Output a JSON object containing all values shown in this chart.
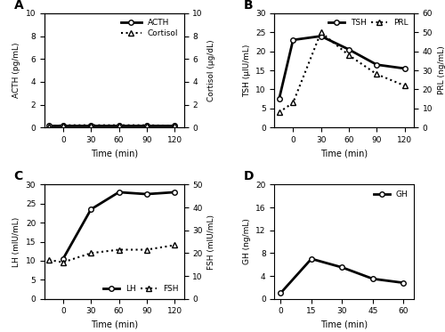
{
  "A": {
    "label": "A",
    "acth_x": [
      -15,
      0,
      30,
      60,
      90,
      120
    ],
    "acth": [
      0.15,
      0.15,
      0.15,
      0.15,
      0.15,
      0.15
    ],
    "cortisol_x": [
      -15,
      0,
      30,
      60,
      90,
      120
    ],
    "cortisol": [
      0.1,
      0.2,
      0.2,
      0.2,
      0.2,
      0.15
    ],
    "ylabel_left": "ACTH (pg/mL)",
    "ylabel_right": "Cortisol (μg/dL)",
    "ylim_left": [
      0,
      10
    ],
    "ylim_right": [
      0,
      10
    ],
    "yticks_left": [
      0,
      2,
      4,
      6,
      8,
      10
    ],
    "yticks_right": [
      0,
      2,
      4,
      6,
      8,
      10
    ],
    "xlabel": "Time (min)",
    "xticks": [
      0,
      30,
      60,
      90,
      120
    ],
    "xlim": [
      -20,
      130
    ],
    "legend1": "ACTH",
    "legend2": "Cortisol"
  },
  "B": {
    "label": "B",
    "tsh_x": [
      -15,
      0,
      30,
      60,
      90,
      120
    ],
    "tsh": [
      7.5,
      23.0,
      24.0,
      20.5,
      16.5,
      15.5
    ],
    "prl_x": [
      -15,
      0,
      30,
      60,
      90,
      120
    ],
    "prl": [
      8.0,
      13.0,
      50.0,
      38.0,
      28.0,
      22.0
    ],
    "ylabel_left": "TSH (μIU/mL)",
    "ylabel_right": "PRL (ng/mL)",
    "ylim_left": [
      0,
      30
    ],
    "ylim_right": [
      0,
      60
    ],
    "yticks_left": [
      0,
      5,
      10,
      15,
      20,
      25,
      30
    ],
    "yticks_right": [
      0,
      10,
      20,
      30,
      40,
      50,
      60
    ],
    "xlabel": "Time (min)",
    "xticks": [
      0,
      30,
      60,
      90,
      120
    ],
    "xlim": [
      -20,
      130
    ],
    "legend1": "TSH",
    "legend2": "PRL"
  },
  "C": {
    "label": "C",
    "lh_x": [
      0,
      30,
      60,
      90,
      120
    ],
    "lh": [
      10.5,
      23.5,
      28.0,
      27.5,
      28.0
    ],
    "fsh_x": [
      -15,
      0,
      30,
      60,
      90,
      120
    ],
    "fsh": [
      17.0,
      16.0,
      20.0,
      21.5,
      21.5,
      23.5
    ],
    "ylabel_left": "LH (mIU/mL)",
    "ylabel_right": "FSH (mIU/mL)",
    "ylim_left": [
      0,
      30
    ],
    "ylim_right": [
      0,
      50
    ],
    "yticks_left": [
      0,
      5,
      10,
      15,
      20,
      25,
      30
    ],
    "yticks_right": [
      0,
      10,
      20,
      30,
      40,
      50
    ],
    "xlabel": "Time (min)",
    "xticks": [
      0,
      30,
      60,
      90,
      120
    ],
    "xlim": [
      -20,
      130
    ],
    "legend1": "LH",
    "legend2": "FSH"
  },
  "D": {
    "label": "D",
    "gh_x": [
      0,
      15,
      30,
      45,
      60
    ],
    "gh": [
      1.0,
      7.0,
      5.5,
      3.5,
      2.8
    ],
    "ylabel_left": "GH (ng/mL)",
    "ylim_left": [
      0,
      20
    ],
    "yticks_left": [
      0,
      4,
      8,
      12,
      16,
      20
    ],
    "xlabel": "Time (min)",
    "xticks": [
      0,
      15,
      30,
      45,
      60
    ],
    "xlim": [
      -3,
      65
    ],
    "legend1": "GH"
  }
}
